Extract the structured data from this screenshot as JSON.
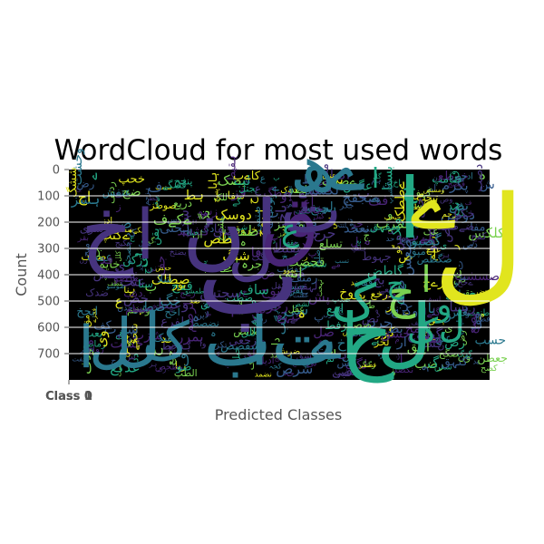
{
  "chart_data": {
    "type": "heatmap",
    "title": "WordCloud for most used words",
    "xlabel": "Predicted Classes",
    "ylabel": "Count",
    "x_tick_labels": [
      "Class 0",
      "Class 1"
    ],
    "y_ticks": [
      0,
      100,
      200,
      300,
      400,
      500,
      600,
      700
    ],
    "ylim": [
      800,
      0
    ],
    "grid": true,
    "background": "#000000",
    "image_rows": 800,
    "image_cols": 1600,
    "colors": {
      "purple": "#46337e",
      "dark_purple": "#482475",
      "teal": "#2a788e",
      "blue": "#365c8d",
      "green": "#22a884",
      "light_green": "#7ad151",
      "yellow": "#e1e51e"
    },
    "large_words": [
      {
        "text": "ا",
        "color": "#2a788e"
      },
      {
        "text": "ل",
        "color": "#2a788e"
      },
      {
        "text": "ل",
        "color": "#2a788e"
      },
      {
        "text": "ک",
        "color": "#2a788e"
      },
      {
        "text": "ب",
        "color": "#2a788e"
      },
      {
        "text": "ا",
        "color": "#2a788e"
      },
      {
        "text": "ت",
        "color": "#2a788e"
      },
      {
        "text": "ے",
        "color": "#2a788e"
      },
      {
        "text": "ح",
        "color": "#22a884"
      },
      {
        "text": "ا",
        "color": "#22a884"
      },
      {
        "text": "ل",
        "color": "#22a884"
      },
      {
        "text": "خ",
        "color": "#46337e"
      },
      {
        "text": "ا",
        "color": "#46337e"
      },
      {
        "text": "ن",
        "color": "#46337e"
      },
      {
        "text": "ل",
        "color": "#46337e"
      },
      {
        "text": "ب",
        "color": "#46337e"
      },
      {
        "text": "ا",
        "color": "#46337e"
      },
      {
        "text": "ق",
        "color": "#482475"
      },
      {
        "text": "ت",
        "color": "#46337e"
      },
      {
        "text": "ھ",
        "color": "#2a788e"
      },
      {
        "text": "ے",
        "color": "#2a788e"
      },
      {
        "text": "ا",
        "color": "#22a884"
      },
      {
        "text": "ل",
        "color": "#e1e51e"
      },
      {
        "text": "ے",
        "color": "#e1e51e"
      },
      {
        "text": "گ",
        "color": "#22a884"
      },
      {
        "text": "ا",
        "color": "#7ad151"
      },
      {
        "text": "ح",
        "color": "#7ad151"
      },
      {
        "text": "ح",
        "color": "#22a884"
      },
      {
        "text": "و",
        "color": "#22a884"
      },
      {
        "text": "ل",
        "color": "#22a884"
      },
      {
        "text": "ک",
        "color": "#22a884"
      },
      {
        "text": "ع",
        "color": "#22a884"
      },
      {
        "text": "ا",
        "color": "#22a884"
      },
      {
        "text": "ج",
        "color": "#22a884"
      }
    ],
    "small_words": [
      "ا",
      "ل",
      "ک",
      "ہ",
      "ے",
      "ی",
      "م",
      "ن",
      "ت",
      "ب",
      "ح",
      "ج",
      "س",
      "ر",
      "و",
      "د",
      "گ",
      "پ",
      "ع",
      "خ",
      "ق",
      "ش",
      "ز",
      "ف",
      "ط",
      "ص",
      "ض"
    ],
    "small_palette": [
      "#482475",
      "#46337e",
      "#365c8d",
      "#2a788e",
      "#22a884",
      "#7ad151",
      "#e1e51e"
    ]
  }
}
